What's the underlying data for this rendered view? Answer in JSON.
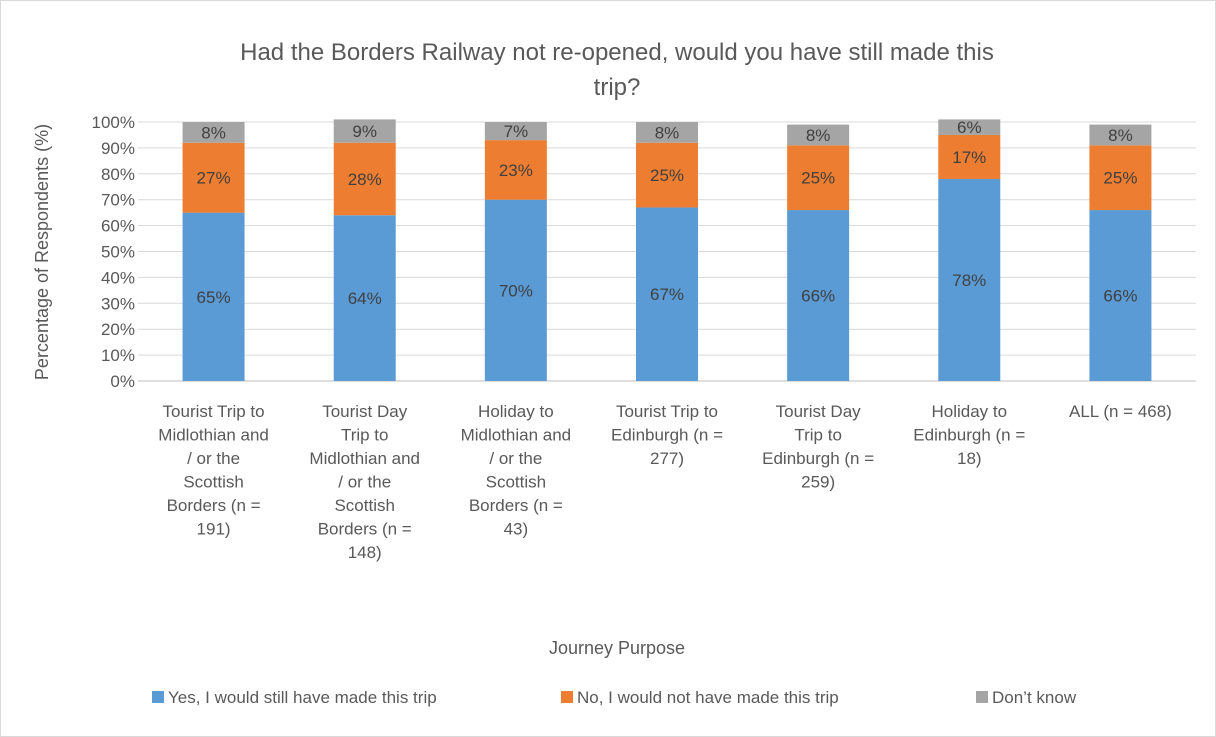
{
  "chart_data": {
    "type": "bar",
    "stacked": true,
    "title": "Had the Borders Railway not re-opened, would you have still made this trip?",
    "xlabel": "Journey Purpose",
    "ylabel": "Percentage of Respondents (%)",
    "ylim": [
      0,
      100
    ],
    "y_ticks": [
      "0%",
      "10%",
      "20%",
      "30%",
      "40%",
      "50%",
      "60%",
      "70%",
      "80%",
      "90%",
      "100%"
    ],
    "grid": true,
    "legend_position": "bottom",
    "categories": [
      "Tourist Trip to Midlothian and / or the Scottish Borders (n = 191)",
      "Tourist Day Trip to Midlothian and / or the Scottish Borders (n = 148)",
      "Holiday to Midlothian and / or the Scottish Borders (n = 43)",
      "Tourist Trip to Edinburgh (n = 277)",
      "Tourist Day Trip to Edinburgh (n = 259)",
      "Holiday to Edinburgh (n = 18)",
      "ALL (n = 468)"
    ],
    "category_lines": [
      [
        "Tourist Trip to",
        "Midlothian and",
        "/ or the",
        "Scottish",
        "Borders (n =",
        "191)"
      ],
      [
        "Tourist Day",
        "Trip to",
        "Midlothian and",
        "/ or the",
        "Scottish",
        "Borders (n =",
        "148)"
      ],
      [
        "Holiday to",
        "Midlothian and",
        "/ or the",
        "Scottish",
        "Borders (n =",
        "43)"
      ],
      [
        "Tourist Trip to",
        "Edinburgh (n =",
        "277)"
      ],
      [
        "Tourist Day",
        "Trip to",
        "Edinburgh (n =",
        "259)"
      ],
      [
        "Holiday to",
        "Edinburgh (n =",
        "18)"
      ],
      [
        "ALL (n = 468)"
      ]
    ],
    "series": [
      {
        "name": "Yes, I would still have made this trip",
        "color": "#5B9BD5",
        "values": [
          65,
          64,
          70,
          67,
          66,
          78,
          66
        ],
        "labels": [
          "65%",
          "64%",
          "70%",
          "67%",
          "66%",
          "78%",
          "66%"
        ]
      },
      {
        "name": "No, I would not have made this trip",
        "color": "#ED7D31",
        "values": [
          27,
          28,
          23,
          25,
          25,
          17,
          25
        ],
        "labels": [
          "27%",
          "28%",
          "23%",
          "25%",
          "25%",
          "17%",
          "25%"
        ]
      },
      {
        "name": "Don’t know",
        "color": "#A5A5A5",
        "values": [
          8,
          9,
          7,
          8,
          8,
          6,
          8
        ],
        "labels": [
          "8%",
          "9%",
          "7%",
          "8%",
          "8%",
          "6%",
          "8%"
        ]
      }
    ]
  }
}
